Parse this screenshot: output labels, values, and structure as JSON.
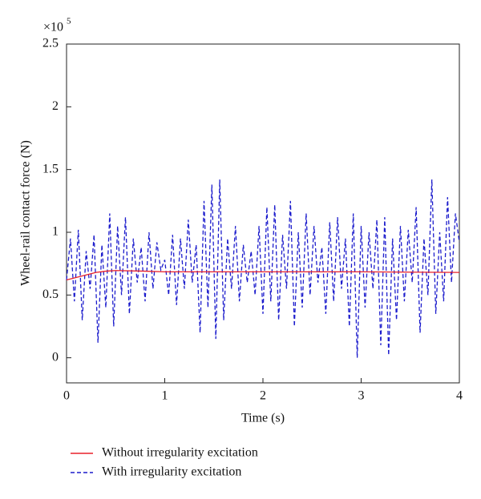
{
  "chart_data": {
    "type": "line",
    "x_label": "Time (s)",
    "y_label": "Wheel-rail contact force (N)",
    "y_multiplier": "×10",
    "y_multiplier_exponent": "5",
    "xlim": [
      0,
      4
    ],
    "xticks": [
      0,
      1,
      2,
      3,
      4
    ],
    "ylim": [
      -0.2,
      2.5
    ],
    "yticks": [
      0,
      0.5,
      1,
      1.5,
      2,
      2.5
    ],
    "legend": "below",
    "series": [
      {
        "name": "Without irregularity excitation",
        "color": "#e8202a",
        "dash": "solid",
        "x": [
          0,
          0.1,
          0.2,
          0.3,
          0.4,
          0.5,
          0.8,
          1,
          2,
          3,
          4
        ],
        "values": [
          0.62,
          0.64,
          0.66,
          0.68,
          0.69,
          0.695,
          0.69,
          0.685,
          0.685,
          0.685,
          0.68
        ]
      },
      {
        "name": "With irregularity excitation",
        "color": "#1c1ccc",
        "dash": "dashed",
        "x": [
          0,
          0.04,
          0.08,
          0.12,
          0.16,
          0.2,
          0.24,
          0.28,
          0.32,
          0.36,
          0.4,
          0.44,
          0.48,
          0.52,
          0.56,
          0.6,
          0.64,
          0.68,
          0.72,
          0.76,
          0.8,
          0.84,
          0.88,
          0.92,
          0.96,
          1,
          1.04,
          1.08,
          1.12,
          1.16,
          1.2,
          1.24,
          1.28,
          1.32,
          1.36,
          1.4,
          1.44,
          1.48,
          1.52,
          1.56,
          1.6,
          1.64,
          1.68,
          1.72,
          1.76,
          1.8,
          1.84,
          1.88,
          1.92,
          1.96,
          2,
          2.04,
          2.08,
          2.12,
          2.16,
          2.2,
          2.24,
          2.28,
          2.32,
          2.36,
          2.4,
          2.44,
          2.48,
          2.52,
          2.56,
          2.6,
          2.64,
          2.68,
          2.72,
          2.76,
          2.8,
          2.84,
          2.88,
          2.92,
          2.96,
          3,
          3.04,
          3.08,
          3.12,
          3.16,
          3.2,
          3.24,
          3.28,
          3.32,
          3.36,
          3.4,
          3.44,
          3.48,
          3.52,
          3.56,
          3.6,
          3.64,
          3.68,
          3.72,
          3.76,
          3.8,
          3.84,
          3.88,
          3.92,
          3.96,
          4
        ],
        "values": [
          0.62,
          0.95,
          0.45,
          1.02,
          0.3,
          0.85,
          0.55,
          0.98,
          0.12,
          0.9,
          0.4,
          1.15,
          0.25,
          1.05,
          0.5,
          1.12,
          0.35,
          0.95,
          0.6,
          0.88,
          0.45,
          1.0,
          0.55,
          0.92,
          0.7,
          0.78,
          0.5,
          0.98,
          0.42,
          0.95,
          0.55,
          1.1,
          0.6,
          0.9,
          0.2,
          1.25,
          0.4,
          1.38,
          0.15,
          1.42,
          0.3,
          0.95,
          0.55,
          1.05,
          0.45,
          0.9,
          0.6,
          0.85,
          0.5,
          1.05,
          0.35,
          1.2,
          0.45,
          1.22,
          0.3,
          0.98,
          0.55,
          1.25,
          0.25,
          1.0,
          0.4,
          1.15,
          0.5,
          1.05,
          0.6,
          0.88,
          0.35,
          1.08,
          0.45,
          1.12,
          0.55,
          0.95,
          0.25,
          1.15,
          0.0,
          1.05,
          0.4,
          1.0,
          0.55,
          1.1,
          0.1,
          1.12,
          0.02,
          0.95,
          0.3,
          1.05,
          0.45,
          1.02,
          0.6,
          1.2,
          0.2,
          0.95,
          0.5,
          1.42,
          0.35,
          1.0,
          0.45,
          1.28,
          0.6,
          1.15,
          0.92
        ]
      }
    ]
  }
}
